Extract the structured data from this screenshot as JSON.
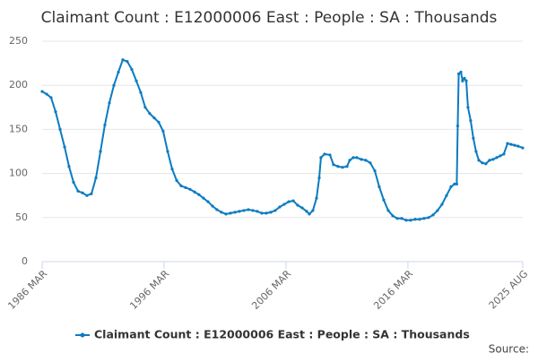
{
  "chart_data": {
    "type": "line",
    "title": "Claimant Count : E12000006 East : People : SA : Thousands",
    "source": "Source:",
    "xlim": [
      1986.167,
      2025.583
    ],
    "xticks": [
      {
        "value": 1986.167,
        "label": "1986 MAR"
      },
      {
        "value": 1996.167,
        "label": "1996 MAR"
      },
      {
        "value": 2006.167,
        "label": "2006 MAR"
      },
      {
        "value": 2016.167,
        "label": "2016 MAR"
      },
      {
        "value": 2025.583,
        "label": "2025 AUG"
      }
    ],
    "ylim": [
      0,
      250
    ],
    "yticks": [
      0,
      50,
      100,
      150,
      200,
      250
    ],
    "grid": true,
    "legend": "bottom",
    "x": [
      1986.17,
      1986.54,
      1986.9,
      1987.27,
      1987.64,
      1988.01,
      1988.37,
      1988.74,
      1989.11,
      1989.48,
      1989.84,
      1990.21,
      1990.58,
      1990.95,
      1991.31,
      1991.68,
      1992.05,
      1992.42,
      1992.78,
      1993.15,
      1993.52,
      1993.89,
      1994.25,
      1994.62,
      1994.99,
      1995.36,
      1995.73,
      1996.09,
      1996.46,
      1996.83,
      1997.2,
      1997.56,
      1997.93,
      1998.3,
      1998.67,
      1999.03,
      1999.4,
      1999.77,
      2000.14,
      2000.5,
      2000.87,
      2001.24,
      2001.61,
      2001.98,
      2002.34,
      2002.71,
      2003.08,
      2003.45,
      2003.81,
      2004.18,
      2004.55,
      2004.92,
      2005.28,
      2005.65,
      2006.02,
      2006.39,
      2006.76,
      2007.12,
      2007.49,
      2007.86,
      2008.08,
      2008.37,
      2008.67,
      2008.89,
      2009.03,
      2009.33,
      2009.77,
      2010.06,
      2010.43,
      2010.8,
      2011.17,
      2011.39,
      2011.68,
      2011.97,
      2012.34,
      2012.71,
      2013.08,
      2013.45,
      2013.81,
      2014.18,
      2014.55,
      2014.92,
      2015.29,
      2015.65,
      2016.02,
      2016.39,
      2016.76,
      2017.12,
      2017.49,
      2017.86,
      2018.23,
      2018.59,
      2018.96,
      2019.33,
      2019.7,
      2019.99,
      2020.17,
      2020.25,
      2020.33,
      2020.51,
      2020.65,
      2020.8,
      2020.95,
      2021.09,
      2021.31,
      2021.53,
      2021.75,
      2021.98,
      2022.27,
      2022.56,
      2022.86,
      2023.15,
      2023.45,
      2023.74,
      2024.03,
      2024.33,
      2024.62,
      2024.91,
      2025.2,
      2025.58
    ],
    "series": [
      {
        "name": "Claimant Count : E12000006 East : People : SA : Thousands",
        "color": "#0b7bc1",
        "values": [
          193,
          190,
          186,
          170,
          150,
          130,
          108,
          90,
          80,
          78,
          75,
          77,
          95,
          125,
          155,
          180,
          200,
          215,
          229,
          227,
          218,
          205,
          192,
          175,
          168,
          163,
          158,
          148,
          125,
          105,
          92,
          86,
          84,
          82,
          79,
          76,
          72,
          68,
          63,
          59,
          56,
          54,
          55,
          56,
          57,
          58,
          59,
          58,
          57,
          55,
          55,
          56,
          58,
          62,
          65,
          68,
          69,
          64,
          61,
          57,
          54,
          58,
          72,
          95,
          118,
          122,
          121,
          110,
          108,
          107,
          108,
          115,
          118,
          118,
          116,
          115,
          112,
          103,
          85,
          70,
          58,
          52,
          49,
          49,
          47,
          47,
          48,
          48,
          49,
          50,
          53,
          58,
          65,
          75,
          85,
          88,
          88,
          154,
          213,
          215,
          205,
          208,
          205,
          175,
          160,
          140,
          125,
          115,
          112,
          111,
          115,
          116,
          118,
          120,
          122,
          134,
          133,
          132,
          131,
          129
        ]
      }
    ]
  }
}
